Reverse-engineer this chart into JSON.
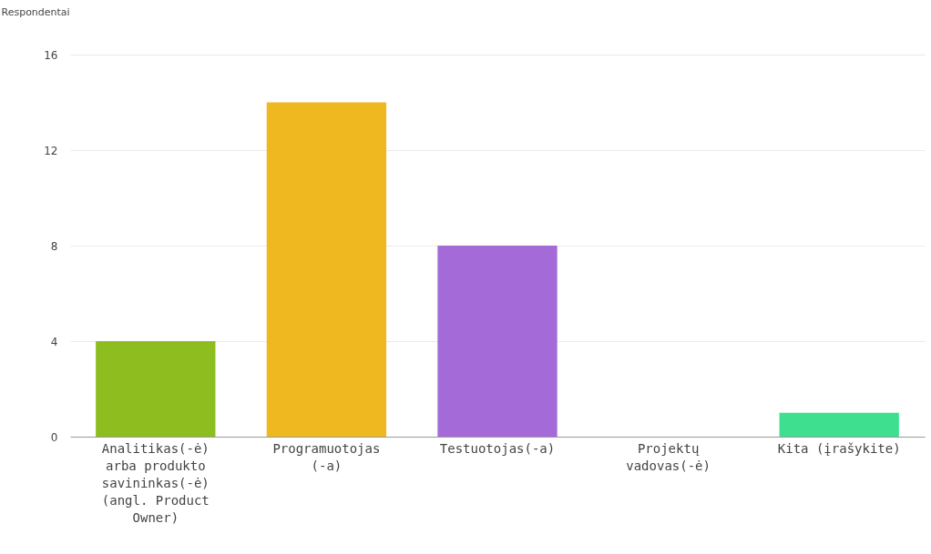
{
  "chart_data": {
    "type": "bar",
    "ylabel": "Respondentai",
    "categories": [
      "Analitikas(-ė) arba produkto savininkas(-ė) (angl. Product Owner)",
      "Programuotojas (-a)",
      "Testuotojas(-a)",
      "Projektų vadovas(-ė)",
      "Kita (įrašykite)"
    ],
    "values": [
      4,
      14,
      8,
      0,
      1
    ],
    "colors": [
      "#8dbd1f",
      "#f0b820",
      "#a36ad8",
      "#5b9bd5",
      "#3ee08f"
    ],
    "ylim": [
      0,
      16
    ],
    "yticks": [
      0,
      4,
      8,
      12,
      16
    ],
    "grid": "y"
  }
}
